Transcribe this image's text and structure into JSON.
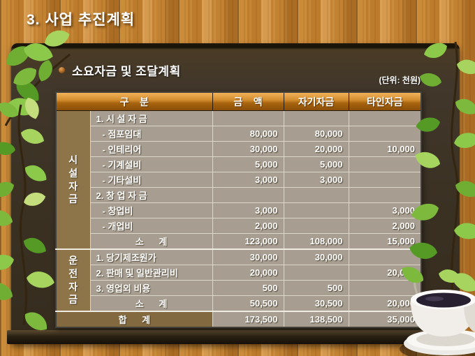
{
  "page": {
    "title": "3. 사업 추진계획",
    "section_heading": "소요자금 및 조달계획",
    "unit_label": "(단위: 천원)"
  },
  "table": {
    "columns": [
      "구    분",
      "금    액",
      "자기자금",
      "타인자금"
    ],
    "sections": [
      {
        "group_label": "시설자금",
        "rows": [
          {
            "type": "category",
            "label": "1. 시 설 자 금",
            "amount": "",
            "own": "",
            "other": ""
          },
          {
            "type": "item",
            "label": "- 점포임대",
            "amount": "80,000",
            "own": "80,000",
            "other": ""
          },
          {
            "type": "item",
            "label": "- 인테리어",
            "amount": "30,000",
            "own": "20,000",
            "other": "10,000"
          },
          {
            "type": "item",
            "label": "- 기계설비",
            "amount": "5,000",
            "own": "5,000",
            "other": ""
          },
          {
            "type": "item",
            "label": "- 기타설비",
            "amount": "3,000",
            "own": "3,000",
            "other": ""
          },
          {
            "type": "category",
            "label": "2. 창 업 자 금",
            "amount": "",
            "own": "",
            "other": ""
          },
          {
            "type": "item",
            "label": "- 창업비",
            "amount": "3,000",
            "own": "",
            "other": "3,000"
          },
          {
            "type": "item",
            "label": "- 개업비",
            "amount": "2,000",
            "own": "",
            "other": "2,000"
          },
          {
            "type": "subtotal",
            "label": "소      계",
            "amount": "123,000",
            "own": "108,000",
            "other": "15,000"
          }
        ]
      },
      {
        "group_label": "운전자금",
        "rows": [
          {
            "type": "category",
            "label": "1. 당기제조원가",
            "amount": "30,000",
            "own": "30,000",
            "other": ""
          },
          {
            "type": "category",
            "label": "2. 판매 및 일반관리비",
            "amount": "20,000",
            "own": "",
            "other": "20,000"
          },
          {
            "type": "category",
            "label": "3. 영업외 비용",
            "amount": "500",
            "own": "500",
            "other": ""
          },
          {
            "type": "subtotal",
            "label": "소      계",
            "amount": "50,500",
            "own": "30,500",
            "other": "20,000"
          }
        ]
      }
    ],
    "total_row": {
      "label": "합      계",
      "amount": "173,500",
      "own": "138,500",
      "other": "35,000"
    }
  },
  "colors": {
    "header_top": "#f2b259",
    "header_bottom": "#8a4e08",
    "body_cell": "#a79e91",
    "group_cell": "#8d7449",
    "total_cell": "#83693f",
    "panel": "#3a3123",
    "wood": "#c08030",
    "text": "#ffffff"
  },
  "decorations": {
    "left": "ivy-vine",
    "right": "ivy-vine",
    "top_left": "leaf-cluster",
    "bottom_right": "coffee-cup"
  }
}
